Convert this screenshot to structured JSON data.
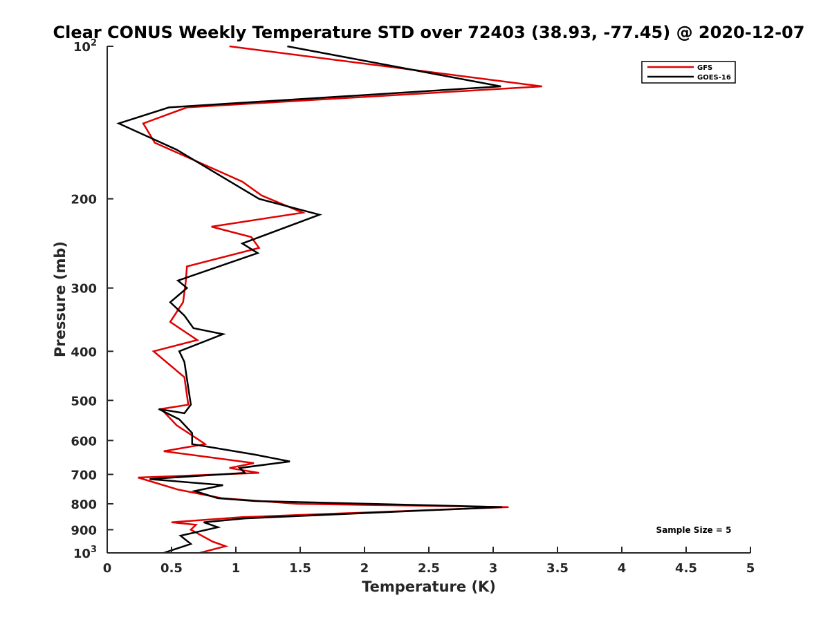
{
  "chart_data": {
    "type": "line",
    "title": "Clear CONUS Weekly Temperature STD over 72403 (38.93, -77.45) @ 2020-12-07",
    "xlabel": "Temperature (K)",
    "ylabel": "Pressure (mb)",
    "xlim": [
      0,
      5
    ],
    "ylim": [
      100,
      1000
    ],
    "yscale": "log",
    "y_reversed": true,
    "grid": false,
    "legend_position": "top-right",
    "x_ticks": [
      "0",
      "0.5",
      "1",
      "1.5",
      "2",
      "2.5",
      "3",
      "3.5",
      "4",
      "4.5",
      "5"
    ],
    "y_ticks": [
      {
        "value": 100,
        "base": "10",
        "exp": "2"
      },
      {
        "value": 200,
        "label": "200"
      },
      {
        "value": 300,
        "label": "300"
      },
      {
        "value": 400,
        "label": "400"
      },
      {
        "value": 500,
        "label": "500"
      },
      {
        "value": 600,
        "label": "600"
      },
      {
        "value": 700,
        "label": "700"
      },
      {
        "value": 800,
        "label": "800"
      },
      {
        "value": 900,
        "label": "900"
      },
      {
        "value": 1000,
        "base": "10",
        "exp": "3"
      }
    ],
    "annotation": "Sample Size = 5",
    "series": [
      {
        "name": "GFS",
        "color": "#e00000",
        "x": [
          0.95,
          3.38,
          0.62,
          0.28,
          0.37,
          1.05,
          1.2,
          1.52,
          0.81,
          1.12,
          1.18,
          0.62,
          0.61,
          0.59,
          0.49,
          0.7,
          0.36,
          0.6,
          0.63,
          0.42,
          0.54,
          0.72,
          0.76,
          0.44,
          1.14,
          0.95,
          1.18,
          0.24,
          0.55,
          0.89,
          1.48,
          3.12,
          1.05,
          0.5,
          0.69,
          0.65,
          0.82,
          0.92,
          0.72
        ],
        "y": [
          100,
          120,
          132,
          142,
          155,
          185,
          197,
          213,
          227,
          238,
          250,
          272,
          292,
          320,
          350,
          380,
          400,
          450,
          510,
          520,
          560,
          600,
          610,
          630,
          665,
          680,
          695,
          710,
          750,
          780,
          800,
          812,
          850,
          870,
          880,
          900,
          950,
          970,
          1000
        ]
      },
      {
        "name": "GOES-16",
        "color": "#000000",
        "x": [
          1.4,
          3.06,
          0.48,
          0.09,
          0.54,
          1.18,
          1.65,
          1.05,
          1.17,
          0.55,
          0.62,
          0.49,
          0.6,
          0.67,
          0.9,
          0.56,
          0.6,
          0.65,
          0.6,
          0.4,
          0.56,
          0.66,
          0.66,
          1.15,
          1.42,
          1.03,
          1.07,
          0.33,
          0.9,
          0.68,
          0.86,
          1.15,
          3.07,
          1.07,
          0.75,
          0.86,
          0.57,
          0.65,
          0.44
        ],
        "y": [
          100,
          120,
          132,
          142,
          160,
          200,
          215,
          245,
          256,
          290,
          300,
          320,
          340,
          360,
          370,
          400,
          420,
          510,
          530,
          520,
          545,
          580,
          610,
          640,
          660,
          680,
          695,
          715,
          735,
          755,
          780,
          790,
          812,
          855,
          870,
          890,
          925,
          960,
          1000
        ]
      }
    ]
  }
}
